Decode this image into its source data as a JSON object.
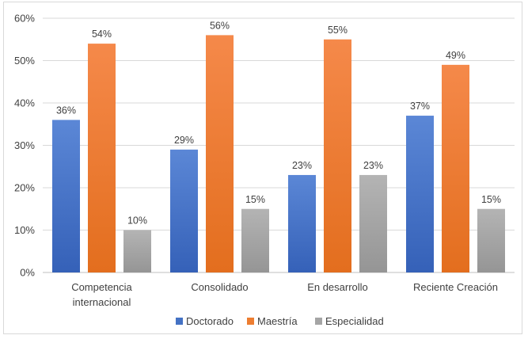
{
  "chart_data": {
    "type": "bar",
    "categories": [
      [
        "Competencia",
        "internacional"
      ],
      [
        "Consolidado"
      ],
      [
        "En desarrollo"
      ],
      [
        "Reciente Creación"
      ]
    ],
    "series": [
      {
        "name": "Doctorado",
        "values": [
          36,
          29,
          23,
          37
        ],
        "labels": [
          "36%",
          "29%",
          "23%",
          "37%"
        ],
        "color": "#4472C4"
      },
      {
        "name": "Maestría",
        "values": [
          54,
          56,
          55,
          49
        ],
        "labels": [
          "54%",
          "56%",
          "55%",
          "49%"
        ],
        "color": "#ED7D31"
      },
      {
        "name": "Especialidad",
        "values": [
          10,
          15,
          23,
          15
        ],
        "labels": [
          "10%",
          "15%",
          "23%",
          "15%"
        ],
        "color": "#A5A5A5"
      }
    ],
    "ylim": [
      0,
      60
    ],
    "yticks": [
      0,
      10,
      20,
      30,
      40,
      50,
      60
    ],
    "ytick_labels": [
      "0%",
      "10%",
      "20%",
      "30%",
      "40%",
      "50%",
      "60%"
    ],
    "grid": true,
    "legend_position": "bottom",
    "title": "",
    "xlabel": "",
    "ylabel": ""
  }
}
